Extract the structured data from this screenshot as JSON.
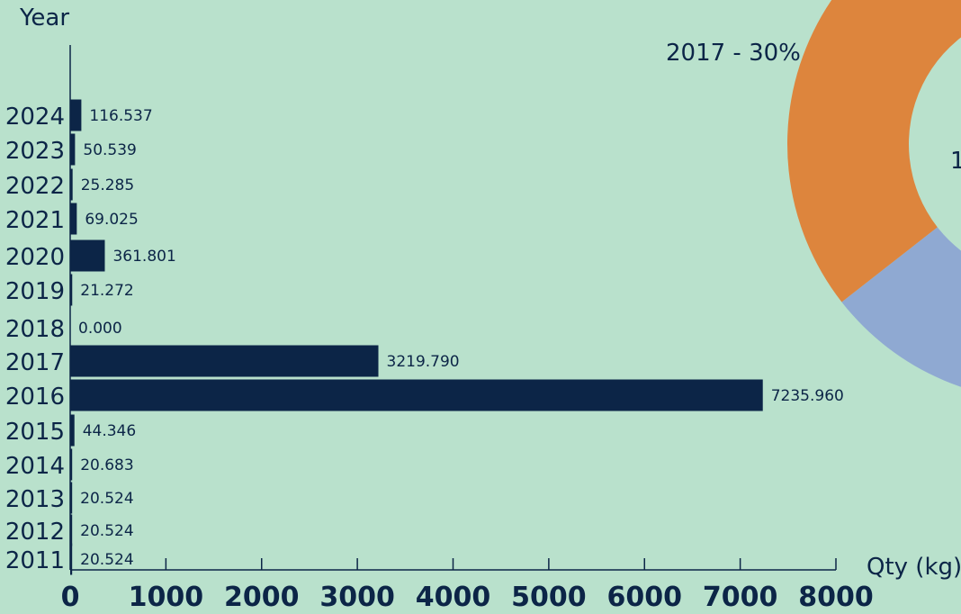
{
  "chart_data": [
    {
      "type": "bar",
      "orientation": "horizontal",
      "ylabel": "Year",
      "xlabel": "Qty (kg)",
      "xlim": [
        0,
        8000
      ],
      "xticks": [
        "0",
        "1000",
        "2000",
        "3000",
        "4000",
        "5000",
        "6000",
        "7000",
        "8000"
      ],
      "categories": [
        "2024",
        "2023",
        "2022",
        "2021",
        "2020",
        "2019",
        "2018",
        "2017",
        "2016",
        "2015",
        "2014",
        "2013",
        "2012",
        "2011"
      ],
      "values": [
        116.537,
        50.539,
        25.285,
        69.025,
        361.801,
        21.272,
        0.0,
        3219.79,
        7235.96,
        44.346,
        20.683,
        20.524,
        20.524,
        20.524
      ],
      "value_labels": [
        "116.537",
        "50.539",
        "25.285",
        "69.025",
        "361.801",
        "21.272",
        "0.000",
        "3219.790",
        "7235.960",
        "44.346",
        "20.683",
        "20.524",
        "20.524",
        "20.524"
      ],
      "bar_color": "#0c2547",
      "grid": false
    },
    {
      "type": "pie",
      "style": "donut",
      "visible_labels": [
        "2017 - 30%",
        "1"
      ],
      "slices": [
        {
          "label": "2017 - 30%",
          "percent": 30,
          "color": "#8fa9d2"
        },
        {
          "label": "",
          "percent": 70,
          "color": "#dd853d"
        }
      ]
    }
  ],
  "colors": {
    "background": "#b9e1cc",
    "text": "#0c2547"
  }
}
